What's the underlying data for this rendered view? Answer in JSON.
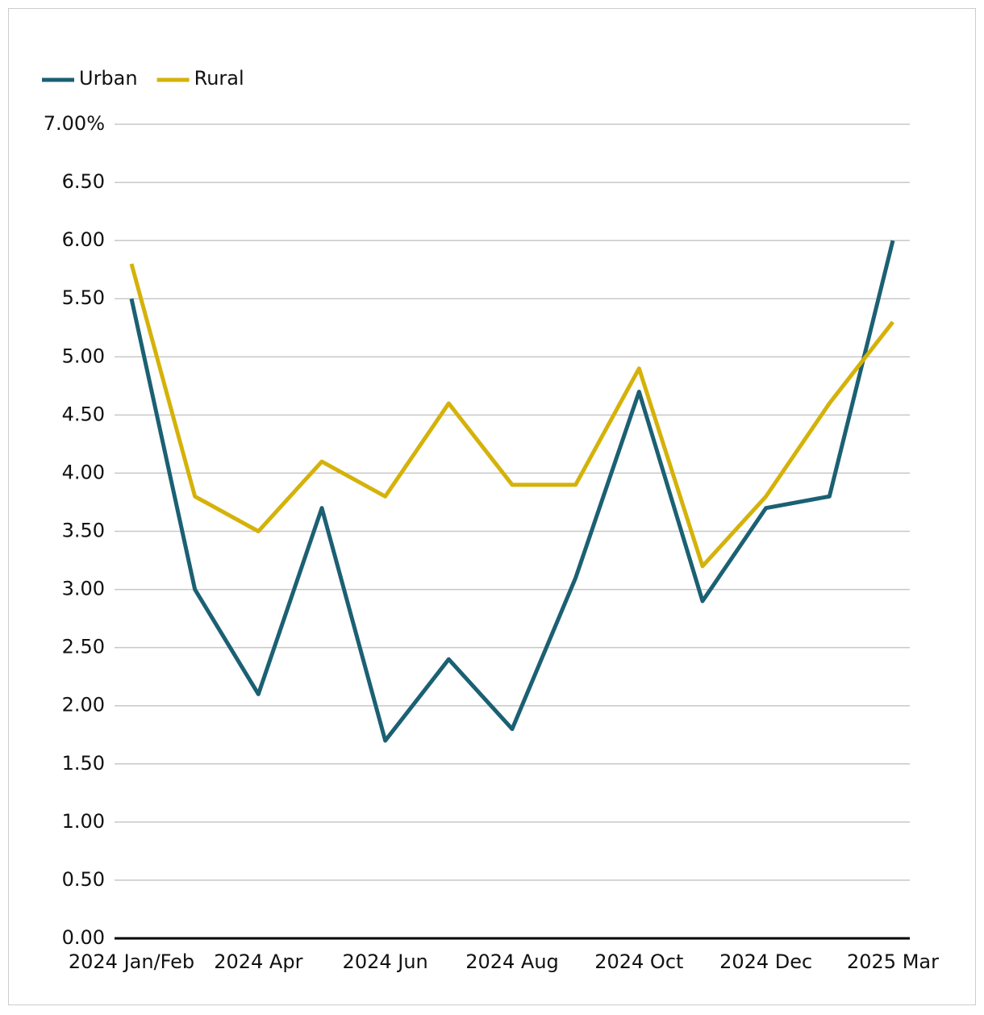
{
  "chart_data": {
    "type": "line",
    "categories": [
      "2024 Jan/Feb",
      null,
      "2024 Apr",
      null,
      "2024 Jun",
      null,
      "2024 Aug",
      null,
      "2024 Oct",
      null,
      "2024 Dec",
      null,
      "2025 Mar"
    ],
    "series": [
      {
        "name": "Urban",
        "color": "#1b6073",
        "values": [
          5.5,
          3.0,
          2.1,
          3.7,
          1.7,
          2.4,
          1.8,
          3.1,
          4.7,
          2.9,
          3.7,
          3.8,
          6.0
        ]
      },
      {
        "name": "Rural",
        "color": "#d5b20a",
        "values": [
          5.8,
          3.8,
          3.5,
          4.1,
          3.8,
          4.6,
          3.9,
          3.9,
          4.9,
          3.2,
          3.8,
          4.6,
          5.3
        ]
      }
    ],
    "ylim": [
      0,
      7
    ],
    "yticks": [
      {
        "value": 0,
        "label": "0.00"
      },
      {
        "value": 0.5,
        "label": "0.50"
      },
      {
        "value": 1,
        "label": "1.00"
      },
      {
        "value": 1.5,
        "label": "1.50"
      },
      {
        "value": 2,
        "label": "2.00"
      },
      {
        "value": 2.5,
        "label": "2.50"
      },
      {
        "value": 3,
        "label": "3.00"
      },
      {
        "value": 3.5,
        "label": "3.50"
      },
      {
        "value": 4,
        "label": "4.00"
      },
      {
        "value": 4.5,
        "label": "4.50"
      },
      {
        "value": 5,
        "label": "5.00"
      },
      {
        "value": 5.5,
        "label": "5.50"
      },
      {
        "value": 6,
        "label": "6.00"
      },
      {
        "value": 6.5,
        "label": "6.50"
      },
      {
        "value": 7,
        "label": "7.00%"
      }
    ],
    "grid": true,
    "legend": "top-left"
  }
}
